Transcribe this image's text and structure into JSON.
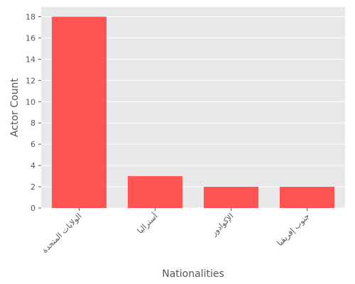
{
  "chart_data": {
    "type": "bar",
    "categories": [
      "الولايات المتحدة",
      "أستراليا",
      "الإكوادور",
      "جنوب إفريقيا"
    ],
    "values": [
      18,
      3,
      2,
      2
    ],
    "xlabel": "Nationalities",
    "ylabel": "Actor Count",
    "ylim": [
      0,
      18.9
    ],
    "yticks": [
      0,
      2,
      4,
      6,
      8,
      10,
      12,
      14,
      16,
      18
    ],
    "grid": true,
    "bar_color": "#ff5555",
    "background_color": "#e8e8e8",
    "grid_color": "#ffffff"
  }
}
